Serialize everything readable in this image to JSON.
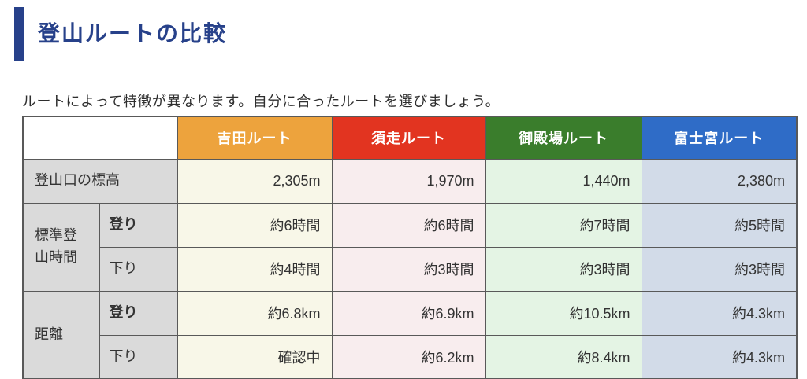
{
  "header": {
    "title": "登山ルートの比較"
  },
  "intro": "ルートによって特徴が異なります。自分に合ったルートを選びましょう。",
  "colors": {
    "accent_navy": "#27418A",
    "border_gray": "#595959",
    "label_bg": "#DADADA",
    "header_text": "#ffffff",
    "body_text": "#333333"
  },
  "table": {
    "columns": [
      {
        "label": "吉田ルート",
        "header_bg": "#EDA33D",
        "cell_bg": "#F8F7E8"
      },
      {
        "label": "須走ルート",
        "header_bg": "#E23420",
        "cell_bg": "#F8EDEE"
      },
      {
        "label": "御殿場ルート",
        "header_bg": "#3A7D2C",
        "cell_bg": "#E4F4E4"
      },
      {
        "label": "富士宮ルート",
        "header_bg": "#2F6CC7",
        "cell_bg": "#D2DBE8"
      }
    ],
    "rows": [
      {
        "group": "登山口の標高",
        "group_colspan": 2,
        "sub": null,
        "sub_bold": false,
        "values": [
          "2,305m",
          "1,970m",
          "1,440m",
          "2,380m"
        ]
      },
      {
        "group": "標準登山時間",
        "group_rowspan": 2,
        "sub": "登り",
        "sub_bold": true,
        "values": [
          "約6時間",
          "約6時間",
          "約7時間",
          "約5時間"
        ]
      },
      {
        "group": null,
        "sub": "下り",
        "sub_bold": false,
        "values": [
          "約4時間",
          "約3時間",
          "約3時間",
          "約3時間"
        ]
      },
      {
        "group": "距離",
        "group_rowspan": 2,
        "sub": "登り",
        "sub_bold": true,
        "values": [
          "約6.8km",
          "約6.9km",
          "約10.5km",
          "約4.3km"
        ]
      },
      {
        "group": null,
        "sub": "下り",
        "sub_bold": false,
        "values": [
          "確認中",
          "約6.2km",
          "約8.4km",
          "約4.3km"
        ]
      }
    ]
  }
}
